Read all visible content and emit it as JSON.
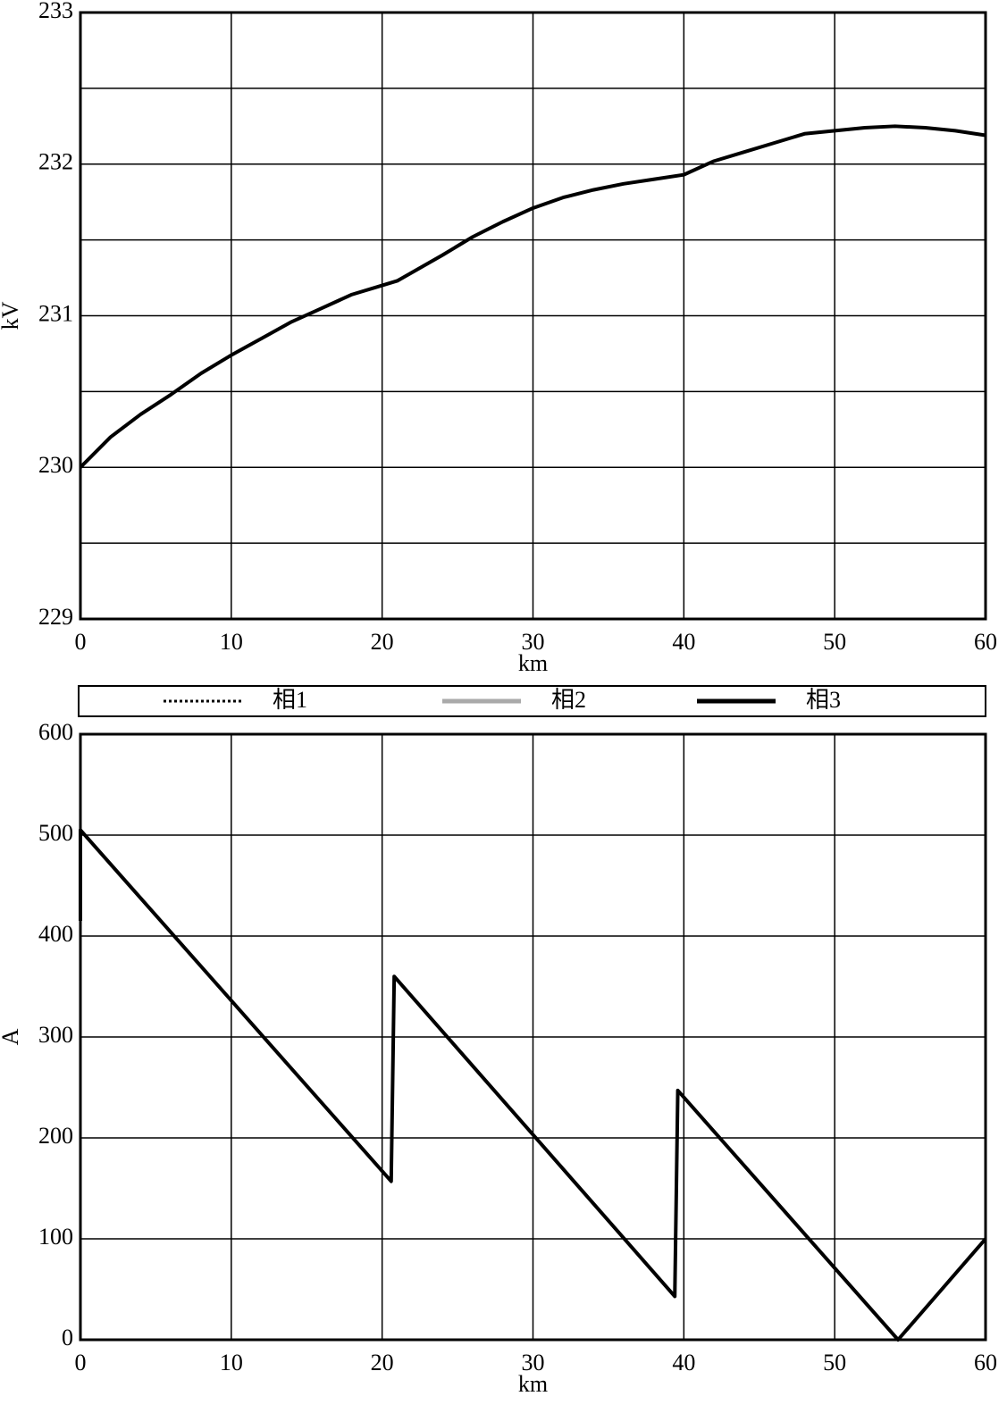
{
  "chart_data": [
    {
      "type": "line",
      "ylabel": "kV",
      "xlabel": "km",
      "xlim": [
        0,
        60
      ],
      "xticks": [
        0,
        10,
        20,
        30,
        40,
        50,
        60
      ],
      "ylim": [
        229,
        233
      ],
      "yticks": [
        229,
        230,
        231,
        232,
        233
      ],
      "yminorticks": [
        229.5,
        230.5,
        231.5,
        232.5
      ],
      "grid": true,
      "series": [
        {
          "name": "相3",
          "color": "#000000",
          "x": [
            0,
            2,
            4,
            6,
            8,
            10,
            12,
            14,
            16,
            18,
            20,
            21,
            24,
            26,
            28,
            30,
            32,
            34,
            36,
            38,
            40,
            42,
            44,
            46,
            48,
            50,
            52,
            54,
            56,
            58,
            60
          ],
          "values": [
            230,
            230.2,
            230.35,
            230.48,
            230.62,
            230.74,
            230.85,
            230.96,
            231.05,
            231.14,
            231.2,
            231.23,
            231.4,
            231.52,
            231.62,
            231.71,
            231.78,
            231.83,
            231.87,
            231.9,
            231.93,
            232.02,
            232.08,
            232.14,
            232.2,
            232.22,
            232.24,
            232.25,
            232.24,
            232.22,
            232.19
          ]
        }
      ]
    },
    {
      "type": "line",
      "ylabel": "A",
      "xlabel": "km",
      "xlim": [
        0,
        60
      ],
      "xticks": [
        0,
        10,
        20,
        30,
        40,
        50,
        60
      ],
      "ylim": [
        0,
        600
      ],
      "yticks": [
        0,
        100,
        200,
        300,
        400,
        500,
        600
      ],
      "grid": true,
      "series": [
        {
          "name": "相3",
          "color": "#000000",
          "x": [
            0,
            0,
            20.6,
            20.8,
            39.4,
            39.6,
            54.2,
            60
          ],
          "values": [
            415,
            505,
            157,
            360,
            43,
            247,
            0,
            100
          ]
        }
      ]
    }
  ],
  "legend": [
    {
      "name": "相1",
      "color": "#000000",
      "dash": "3,3",
      "width": 3
    },
    {
      "name": "相2",
      "color": "#aaaaaa",
      "dash": "none",
      "width": 5
    },
    {
      "name": "相3",
      "color": "#000000",
      "dash": "none",
      "width": 5
    }
  ]
}
